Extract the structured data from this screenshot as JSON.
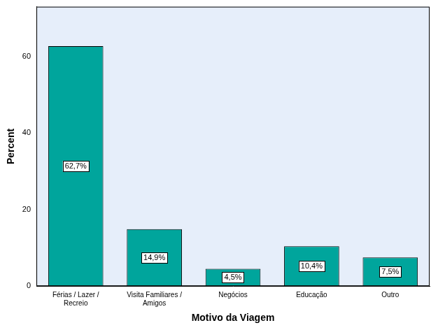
{
  "chart_data": {
    "type": "bar",
    "x_label": "Motivo da Viagem",
    "y_label": "Percent",
    "categories": [
      "Férias / Lazer / Recreio",
      "Visita Familiares / Amigos",
      "Negócios",
      "Educação",
      "Outro"
    ],
    "values": [
      62.7,
      14.9,
      4.5,
      10.4,
      7.5
    ],
    "value_labels": [
      "62,7%",
      "14,9%",
      "4,5%",
      "10,4%",
      "7,5%"
    ],
    "color": "#00a59c",
    "ylim": [
      0,
      73
    ],
    "yticks": [
      0,
      20,
      40,
      60
    ],
    "grid": false,
    "data_labels": true
  }
}
